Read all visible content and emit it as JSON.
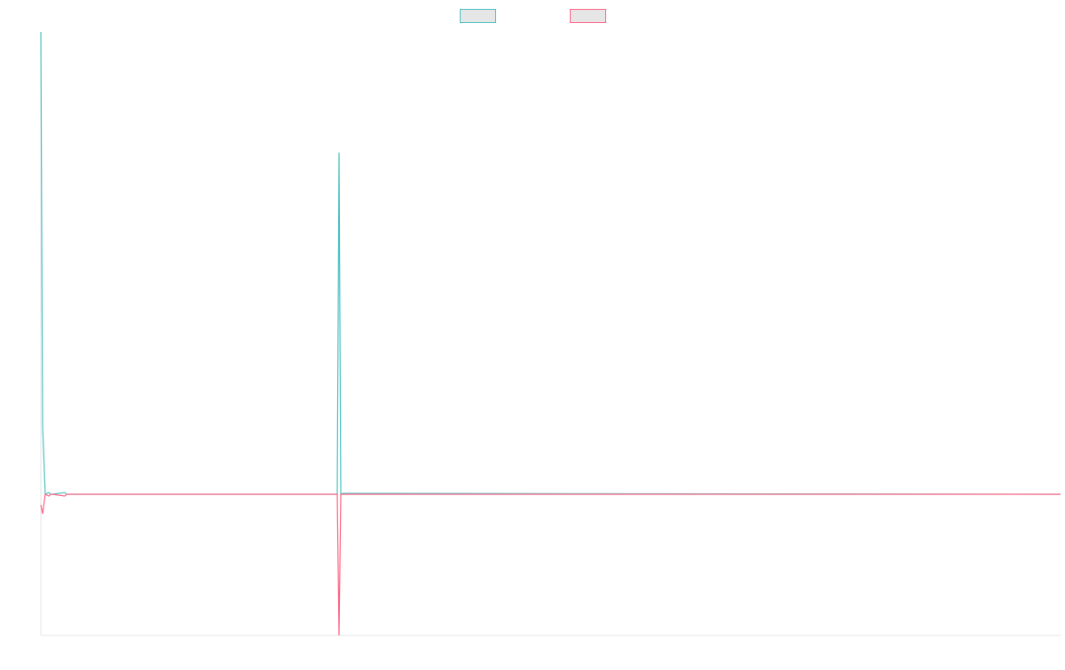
{
  "chart_data": {
    "type": "line",
    "x": [
      0,
      2,
      5,
      9,
      11,
      13,
      27,
      29,
      31,
      334,
      336,
      338,
      340,
      1149
    ],
    "series": [
      {
        "color": "#4bc0c0",
        "values": [
          521,
          77,
          0,
          2,
          0,
          0,
          2,
          0,
          0,
          0,
          385,
          0,
          1,
          0
        ]
      },
      {
        "color": "#ff6384",
        "values": [
          -12,
          -22,
          0,
          -2,
          0,
          0,
          -2,
          0,
          0,
          0,
          -159,
          0,
          0,
          0
        ]
      }
    ],
    "xlim": [
      0,
      1149
    ],
    "ylim": [
      -159,
      521
    ],
    "legend": "top"
  }
}
